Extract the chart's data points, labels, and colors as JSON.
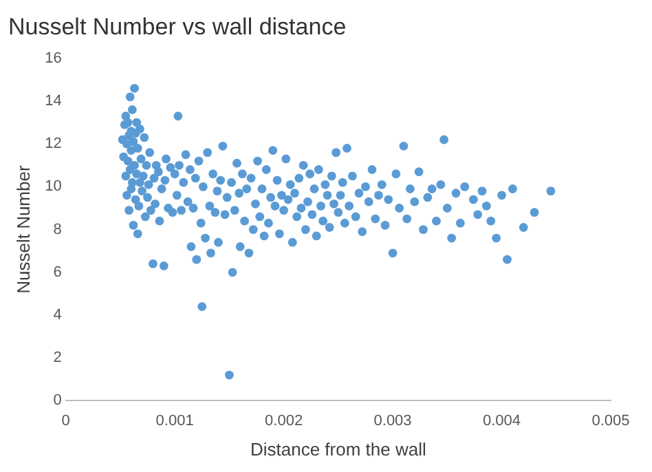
{
  "chart_data": {
    "type": "scatter",
    "title": "Nusselt Number vs wall distance",
    "xlabel": "Distance from the wall",
    "ylabel": "Nusselt Number",
    "x": [
      0.00052,
      0.00053,
      0.00054,
      0.00055,
      0.00055,
      0.00056,
      0.00056,
      0.00057,
      0.00057,
      0.00058,
      0.00058,
      0.00059,
      0.00059,
      0.0006,
      0.0006,
      0.0006,
      0.00061,
      0.00061,
      0.00062,
      0.00062,
      0.00063,
      0.00063,
      0.00064,
      0.00064,
      0.00065,
      0.00065,
      0.00066,
      0.00066,
      0.00067,
      0.00068,
      0.00068,
      0.00069,
      0.0007,
      0.00071,
      0.00072,
      0.00073,
      0.00074,
      0.00075,
      0.00076,
      0.00077,
      0.00078,
      0.0008,
      0.00081,
      0.00082,
      0.00083,
      0.00085,
      0.00086,
      0.00088,
      0.0009,
      0.00091,
      0.00092,
      0.00094,
      0.00096,
      0.00098,
      0.001,
      0.00102,
      0.00103,
      0.00104,
      0.00106,
      0.00108,
      0.0011,
      0.00112,
      0.00114,
      0.00115,
      0.00117,
      0.00119,
      0.0012,
      0.00122,
      0.00124,
      0.00125,
      0.00126,
      0.00128,
      0.0013,
      0.00132,
      0.00133,
      0.00135,
      0.00137,
      0.00139,
      0.0014,
      0.00142,
      0.00144,
      0.00146,
      0.00148,
      0.0015,
      0.00152,
      0.00153,
      0.00155,
      0.00157,
      0.00159,
      0.0016,
      0.00162,
      0.00164,
      0.00166,
      0.00168,
      0.0017,
      0.00172,
      0.00174,
      0.00176,
      0.00178,
      0.0018,
      0.00182,
      0.00184,
      0.00186,
      0.00188,
      0.0019,
      0.00192,
      0.00194,
      0.00196,
      0.00198,
      0.002,
      0.00202,
      0.00204,
      0.00206,
      0.00208,
      0.0021,
      0.00212,
      0.00214,
      0.00216,
      0.00218,
      0.0022,
      0.00222,
      0.00224,
      0.00226,
      0.00228,
      0.0023,
      0.00232,
      0.00234,
      0.00236,
      0.00238,
      0.0024,
      0.00242,
      0.00244,
      0.00246,
      0.00248,
      0.0025,
      0.00252,
      0.00254,
      0.00256,
      0.00258,
      0.0026,
      0.00263,
      0.00266,
      0.00269,
      0.00272,
      0.00275,
      0.00278,
      0.00281,
      0.00284,
      0.00287,
      0.0029,
      0.00293,
      0.00296,
      0.003,
      0.00303,
      0.00306,
      0.0031,
      0.00313,
      0.00316,
      0.0032,
      0.00324,
      0.00328,
      0.00332,
      0.00336,
      0.0034,
      0.00344,
      0.00347,
      0.0035,
      0.00354,
      0.00358,
      0.00362,
      0.00366,
      0.00374,
      0.00378,
      0.00382,
      0.00386,
      0.0039,
      0.00395,
      0.004,
      0.00405,
      0.0041,
      0.0042,
      0.0043,
      0.00445
    ],
    "values": [
      12.2,
      11.4,
      12.9,
      13.3,
      10.5,
      12.0,
      9.6,
      13.0,
      11.2,
      12.4,
      8.9,
      10.8,
      14.2,
      12.6,
      9.9,
      11.7,
      13.6,
      10.2,
      12.1,
      8.2,
      11.0,
      14.6,
      12.5,
      9.4,
      10.6,
      13.0,
      11.8,
      7.8,
      9.1,
      12.7,
      10.2,
      11.3,
      9.8,
      10.5,
      12.3,
      8.6,
      11.0,
      9.5,
      10.1,
      11.6,
      8.9,
      6.4,
      10.4,
      9.2,
      11.0,
      10.7,
      8.4,
      9.9,
      6.3,
      10.3,
      11.3,
      9.0,
      10.9,
      8.8,
      10.6,
      9.6,
      13.3,
      11.0,
      8.9,
      10.2,
      11.5,
      9.3,
      10.8,
      7.2,
      9.0,
      10.4,
      6.6,
      11.2,
      8.3,
      4.4,
      10.0,
      7.6,
      11.6,
      9.1,
      6.9,
      10.6,
      8.8,
      9.8,
      7.4,
      10.3,
      11.9,
      8.7,
      9.5,
      1.2,
      10.2,
      6.0,
      8.9,
      11.1,
      9.7,
      7.2,
      10.6,
      8.4,
      9.9,
      6.9,
      10.4,
      8.0,
      9.2,
      11.2,
      8.6,
      9.9,
      7.7,
      10.8,
      8.3,
      9.5,
      11.7,
      9.1,
      10.3,
      7.8,
      9.6,
      8.9,
      11.3,
      9.4,
      10.1,
      7.4,
      9.7,
      8.6,
      10.4,
      9.0,
      11.0,
      8.0,
      9.3,
      10.6,
      8.7,
      9.9,
      7.7,
      10.8,
      9.1,
      8.4,
      10.1,
      9.6,
      8.1,
      10.5,
      9.2,
      11.6,
      8.8,
      9.6,
      10.2,
      8.3,
      11.8,
      9.1,
      10.5,
      8.6,
      9.7,
      7.9,
      10.0,
      9.3,
      10.8,
      8.5,
      9.6,
      10.1,
      8.2,
      9.4,
      6.9,
      10.6,
      9.0,
      11.9,
      8.5,
      9.9,
      9.3,
      10.7,
      8.0,
      9.5,
      9.9,
      8.4,
      10.1,
      12.2,
      9.0,
      7.6,
      9.7,
      8.3,
      10.0,
      9.4,
      8.7,
      9.8,
      9.1,
      8.4,
      7.6,
      9.6,
      6.6,
      9.9,
      8.1,
      8.8,
      9.8
    ],
    "color": "#5b9bd5",
    "marker": "circle",
    "xlim": [
      0,
      0.005
    ],
    "ylim": [
      0,
      16
    ],
    "xticks": [
      0,
      0.001,
      0.002,
      0.003,
      0.004,
      0.005
    ],
    "yticks": [
      0,
      2,
      4,
      6,
      8,
      10,
      12,
      14,
      16
    ],
    "grid": false,
    "legend": false
  }
}
